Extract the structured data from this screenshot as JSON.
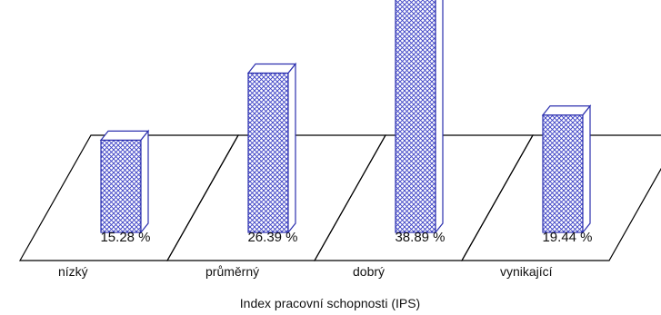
{
  "chart_data": {
    "type": "bar",
    "style": "3d-bar-on-floor-panels",
    "categories": [
      "nízký",
      "průměrný",
      "dobrý",
      "vynikající"
    ],
    "values": [
      15.28,
      26.39,
      38.89,
      19.44
    ],
    "value_labels": [
      "15.28 %",
      "26.39 %",
      "38.89 %",
      "19.44 %"
    ],
    "unit": "%",
    "xlabel": "Index pracovní schopnosti (IPS)",
    "ylabel": "",
    "ylim": [
      0,
      40
    ],
    "grid": false,
    "legend": "none",
    "colors": {
      "bar_outline": "#2b2fae",
      "bar_pattern": "#3a3fc4",
      "bar_fill": "#ffffff",
      "floor_line": "#000000"
    }
  }
}
